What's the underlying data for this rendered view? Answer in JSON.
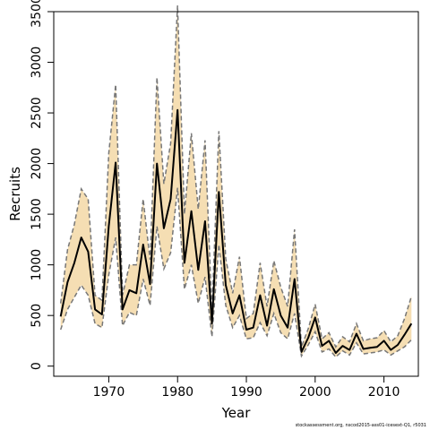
{
  "chart_data": {
    "type": "line",
    "title": "",
    "xlabel": "Year",
    "ylabel": "Recruits",
    "xlim": [
      1962,
      2015
    ],
    "ylim": [
      -100,
      3500
    ],
    "x_ticks": [
      1970,
      1980,
      1990,
      2000,
      2010
    ],
    "y_ticks": [
      0,
      500,
      1000,
      1500,
      2000,
      2500,
      3000,
      3500
    ],
    "grid": false,
    "x": [
      1963,
      1964,
      1965,
      1966,
      1967,
      1968,
      1969,
      1970,
      1971,
      1972,
      1973,
      1974,
      1975,
      1976,
      1977,
      1978,
      1979,
      1980,
      1981,
      1982,
      1983,
      1984,
      1985,
      1986,
      1987,
      1988,
      1989,
      1990,
      1991,
      1992,
      1993,
      1994,
      1995,
      1996,
      1997,
      1998,
      1999,
      2000,
      2001,
      2002,
      2003,
      2004,
      2005,
      2006,
      2007,
      2008,
      2009,
      2010,
      2011,
      2012,
      2013,
      2014
    ],
    "series": [
      {
        "role": "estimate",
        "values": [
          490,
          830,
          1020,
          1270,
          1130,
          560,
          510,
          1380,
          2010,
          560,
          750,
          720,
          1200,
          810,
          2000,
          1360,
          1650,
          2530,
          1020,
          1530,
          950,
          1430,
          420,
          1720,
          800,
          520,
          700,
          360,
          380,
          700,
          400,
          760,
          500,
          380,
          860,
          140,
          280,
          480,
          200,
          250,
          130,
          200,
          160,
          320,
          170,
          180,
          190,
          250,
          160,
          210,
          310,
          420
        ]
      },
      {
        "role": "upper_ci",
        "values": [
          620,
          1150,
          1400,
          1750,
          1650,
          700,
          650,
          2100,
          2780,
          700,
          1000,
          1000,
          1650,
          1050,
          2850,
          1800,
          2200,
          3560,
          1500,
          2300,
          1550,
          2230,
          540,
          2320,
          1060,
          720,
          1080,
          470,
          520,
          1020,
          590,
          1040,
          780,
          590,
          1350,
          190,
          370,
          610,
          270,
          330,
          190,
          290,
          240,
          420,
          250,
          270,
          280,
          350,
          240,
          300,
          470,
          690
        ]
      },
      {
        "role": "lower_ci",
        "values": [
          360,
          560,
          680,
          800,
          700,
          420,
          380,
          900,
          1270,
          400,
          530,
          500,
          860,
          600,
          1380,
          960,
          1120,
          1760,
          760,
          1000,
          620,
          880,
          290,
          1200,
          600,
          380,
          500,
          270,
          280,
          430,
          300,
          520,
          330,
          270,
          520,
          100,
          210,
          340,
          140,
          170,
          90,
          150,
          110,
          230,
          120,
          130,
          140,
          160,
          110,
          150,
          190,
          260
        ]
      }
    ],
    "colors": {
      "estimate": "#000000",
      "ci_lines": "#777777",
      "ci_fill": "#f5deb3"
    }
  },
  "credit": "stockassessment.org, nscod2015-ass01-icesext-Q1, r5031"
}
